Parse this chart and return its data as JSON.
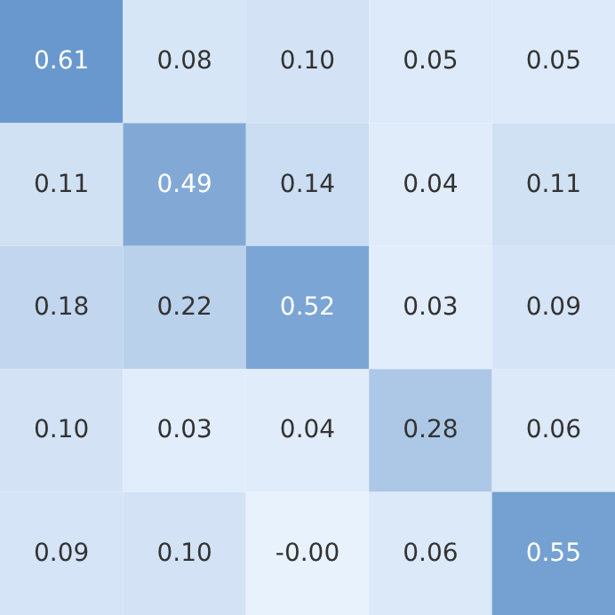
{
  "chart_data": {
    "type": "heatmap",
    "categories": [
      null,
      null,
      null,
      null,
      null
    ],
    "y_categories": [
      null,
      null,
      null,
      null,
      null
    ],
    "tick_labels": false,
    "cells": [
      [
        0.61,
        0.08,
        0.1,
        0.05,
        0.05
      ],
      [
        0.11,
        0.49,
        0.14,
        0.04,
        0.11
      ],
      [
        0.18,
        0.22,
        0.52,
        0.03,
        0.09
      ],
      [
        0.1,
        0.03,
        0.04,
        0.28,
        0.06
      ],
      [
        0.09,
        0.1,
        -0.0,
        0.06,
        0.55
      ]
    ],
    "cell_labels": [
      [
        "0.61",
        "0.08",
        "0.10",
        "0.05",
        "0.05"
      ],
      [
        "0.11",
        "0.49",
        "0.14",
        "0.04",
        "0.11"
      ],
      [
        "0.18",
        "0.22",
        "0.52",
        "0.03",
        "0.09"
      ],
      [
        "0.10",
        "0.03",
        "0.04",
        "0.28",
        "0.06"
      ],
      [
        "0.09",
        "0.10",
        "-0.00",
        "0.06",
        "0.55"
      ]
    ]
  }
}
